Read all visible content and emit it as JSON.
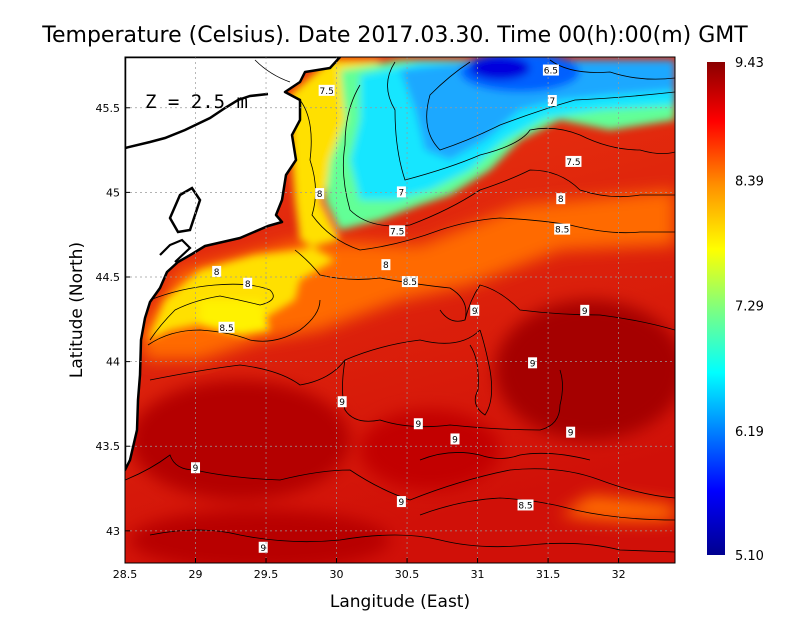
{
  "title": "Temperature (Celsius). Date 2017.03.30. Time 00(h):00(m)  GMT",
  "depth_label": "Z = 2.5 m",
  "x_axis_label": "Langitude (East)",
  "y_axis_label": "Latitude (North)",
  "x_ticks": [
    {
      "value": 28.5,
      "label": "28.5"
    },
    {
      "value": 29,
      "label": "29"
    },
    {
      "value": 29.5,
      "label": "29.5"
    },
    {
      "value": 30,
      "label": "30"
    },
    {
      "value": 30.5,
      "label": "30.5"
    },
    {
      "value": 31,
      "label": "31"
    },
    {
      "value": 31.5,
      "label": "31.5"
    },
    {
      "value": 32,
      "label": "32"
    }
  ],
  "y_ticks": [
    {
      "value": 43,
      "label": "43"
    },
    {
      "value": 43.5,
      "label": "43.5"
    },
    {
      "value": 44,
      "label": "44"
    },
    {
      "value": 44.5,
      "label": "44.5"
    },
    {
      "value": 45,
      "label": "45"
    },
    {
      "value": 45.5,
      "label": "45.5"
    }
  ],
  "colorbar": {
    "min": 5.1,
    "max": 9.43,
    "labels": [
      "9.43",
      "8.39",
      "7.29",
      "6.19",
      "5.10"
    ],
    "label_values": [
      9.43,
      8.39,
      7.29,
      6.19,
      5.1
    ]
  },
  "contour_labels": [
    {
      "text": "6.5",
      "lon": 31.52,
      "lat": 45.72
    },
    {
      "text": "7",
      "lon": 31.53,
      "lat": 45.54
    },
    {
      "text": "7.5",
      "lon": 31.68,
      "lat": 45.18
    },
    {
      "text": "8",
      "lon": 31.59,
      "lat": 44.96
    },
    {
      "text": "8.5",
      "lon": 31.6,
      "lat": 44.78
    },
    {
      "text": "7",
      "lon": 30.46,
      "lat": 45.0
    },
    {
      "text": "7.5",
      "lon": 30.43,
      "lat": 44.77
    },
    {
      "text": "8",
      "lon": 30.35,
      "lat": 44.57
    },
    {
      "text": "8.5",
      "lon": 30.52,
      "lat": 44.47
    },
    {
      "text": "8",
      "lon": 29.88,
      "lat": 44.99
    },
    {
      "text": "7.5",
      "lon": 29.93,
      "lat": 45.6
    },
    {
      "text": "8",
      "lon": 29.15,
      "lat": 44.53
    },
    {
      "text": "8",
      "lon": 29.37,
      "lat": 44.46
    },
    {
      "text": "8.5",
      "lon": 29.22,
      "lat": 44.2
    },
    {
      "text": "9",
      "lon": 30.98,
      "lat": 44.3
    },
    {
      "text": "9",
      "lon": 31.76,
      "lat": 44.3
    },
    {
      "text": "9",
      "lon": 31.39,
      "lat": 43.99
    },
    {
      "text": "9",
      "lon": 30.04,
      "lat": 43.76
    },
    {
      "text": "9",
      "lon": 30.58,
      "lat": 43.63
    },
    {
      "text": "9",
      "lon": 31.66,
      "lat": 43.58
    },
    {
      "text": "9",
      "lon": 30.84,
      "lat": 43.54
    },
    {
      "text": "9",
      "lon": 29.0,
      "lat": 43.37
    },
    {
      "text": "9",
      "lon": 30.46,
      "lat": 43.17
    },
    {
      "text": "8.5",
      "lon": 31.34,
      "lat": 43.15
    },
    {
      "text": "9",
      "lon": 29.48,
      "lat": 42.9
    }
  ],
  "colors": {
    "background": "#ffffff",
    "land": "#ffffff",
    "coastline": "#000000",
    "grid": "#9a9a9a",
    "contour": "#000000"
  }
}
